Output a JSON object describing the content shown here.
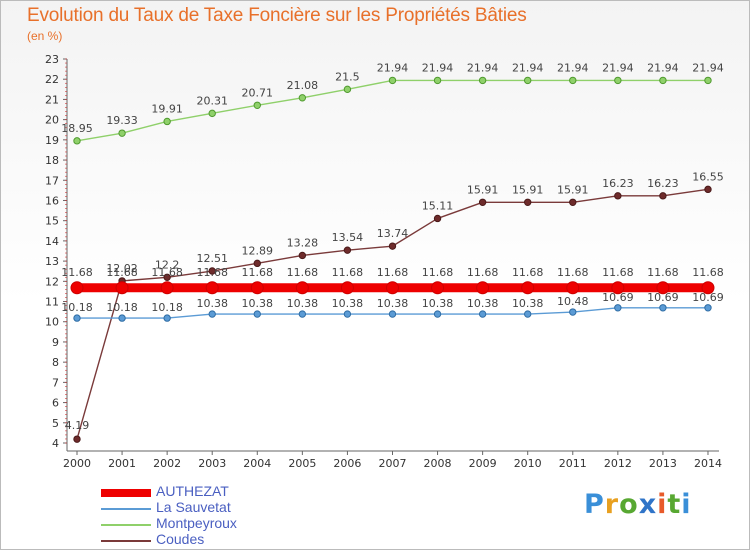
{
  "title": "Evolution du Taux de Taxe Foncière sur les Propriétés Bâties",
  "subtitle": "(en %)",
  "logo": {
    "letters": [
      "P",
      "r",
      "o",
      "x",
      "i",
      "t",
      "i"
    ],
    "colors": [
      "#3a8fd8",
      "#e8a020",
      "#58a832",
      "#2f74c8",
      "#e85a2a",
      "#58a832",
      "#3a8fd8"
    ]
  },
  "chart_data": {
    "type": "line",
    "categories": [
      "2000",
      "2001",
      "2002",
      "2003",
      "2004",
      "2005",
      "2006",
      "2007",
      "2008",
      "2009",
      "2010",
      "2011",
      "2012",
      "2013",
      "2014"
    ],
    "ylim": [
      4,
      23
    ],
    "yticks": [
      "4",
      "5",
      "6",
      "7",
      "8",
      "9",
      "10",
      "11",
      "12",
      "13",
      "14",
      "15",
      "16",
      "17",
      "18",
      "19",
      "20",
      "21",
      "22",
      "23"
    ],
    "grid": false,
    "legend_position": "bottom-left",
    "series": [
      {
        "name": "AUTHEZAT",
        "color": "#ee0000",
        "values": [
          11.68,
          11.68,
          11.68,
          11.68,
          11.68,
          11.68,
          11.68,
          11.68,
          11.68,
          11.68,
          11.68,
          11.68,
          11.68,
          11.68,
          11.68
        ],
        "labels": [
          "11.68",
          "11.68",
          "11.68",
          "11.68",
          "11.68",
          "11.68",
          "11.68",
          "11.68",
          "11.68",
          "11.68",
          "11.68",
          "11.68",
          "11.68",
          "11.68",
          "11.68"
        ]
      },
      {
        "name": "La Sauvetat",
        "color": "#5b9bd5",
        "values": [
          10.18,
          10.18,
          10.18,
          10.38,
          10.38,
          10.38,
          10.38,
          10.38,
          10.38,
          10.38,
          10.38,
          10.48,
          10.69,
          10.69,
          10.69
        ],
        "labels": [
          "10.18",
          "10.18",
          "10.18",
          "10.38",
          "10.38",
          "10.38",
          "10.38",
          "10.38",
          "10.38",
          "10.38",
          "10.38",
          "10.48",
          "10.69",
          "10.69",
          "10.69"
        ]
      },
      {
        "name": "Montpeyroux",
        "color": "#8fd06a",
        "values": [
          18.95,
          19.33,
          19.91,
          20.31,
          20.71,
          21.08,
          21.5,
          21.94,
          21.94,
          21.94,
          21.94,
          21.94,
          21.94,
          21.94,
          21.94
        ],
        "labels": [
          "18.95",
          "19.33",
          "19.91",
          "20.31",
          "20.71",
          "21.08",
          "21.5",
          "21.94",
          "21.94",
          "21.94",
          "21.94",
          "21.94",
          "21.94",
          "21.94",
          "21.94"
        ]
      },
      {
        "name": "Coudes",
        "color": "#7a3a3a",
        "values": [
          4.19,
          12.02,
          12.2,
          12.51,
          12.89,
          13.28,
          13.54,
          13.74,
          15.11,
          15.91,
          15.91,
          15.91,
          16.23,
          16.23,
          16.55
        ],
        "labels": [
          "4.19",
          "12.02",
          "12.2",
          "12.51",
          "12.89",
          "13.28",
          "13.54",
          "13.74",
          "15.11",
          "15.91",
          "15.91",
          "15.91",
          "16.23",
          "16.23",
          "16.55"
        ]
      }
    ]
  }
}
